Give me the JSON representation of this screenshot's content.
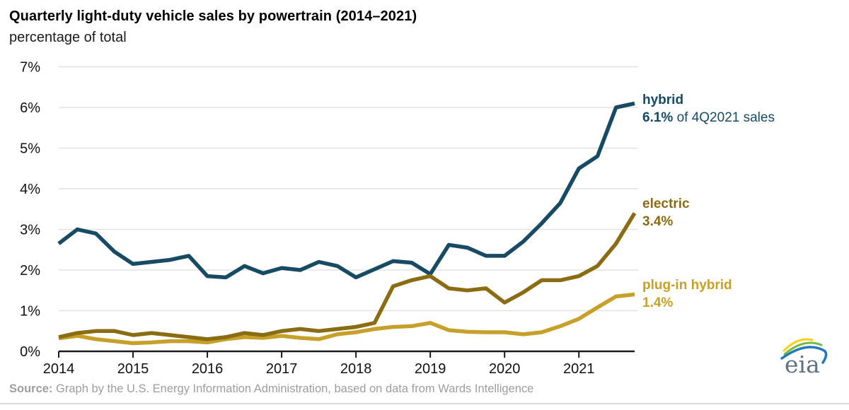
{
  "header": {
    "title": "Quarterly light-duty vehicle sales by powertrain (2014–2021)",
    "subtitle": "percentage of total"
  },
  "chart_data": {
    "type": "line",
    "title": "Quarterly light-duty vehicle sales by powertrain (2014–2021)",
    "subtitle": "percentage of total",
    "x_unit": "quarter",
    "x_range": [
      "2014 Q1",
      "2021 Q4"
    ],
    "x_tick_labels": [
      "2014",
      "2015",
      "2016",
      "2017",
      "2018",
      "2019",
      "2020",
      "2021"
    ],
    "y_tick_labels": [
      "0%",
      "1%",
      "2%",
      "3%",
      "4%",
      "5%",
      "6%",
      "7%"
    ],
    "ylim": [
      0,
      7
    ],
    "grid": "horizontal",
    "grid_color": "#e3e3e3",
    "axis_color": "#1a1a1a",
    "legend_position": "right-annotations",
    "series": [
      {
        "label": "hybrid",
        "callout_value": "6.1%",
        "callout_suffix": " of 4Q2021 sales",
        "color": "#174a63",
        "values": [
          2.65,
          3.0,
          2.9,
          2.45,
          2.15,
          2.2,
          2.25,
          2.35,
          1.85,
          1.82,
          2.1,
          1.92,
          2.05,
          2.0,
          2.2,
          2.1,
          1.82,
          2.02,
          2.22,
          2.18,
          1.9,
          2.62,
          2.55,
          2.35,
          2.35,
          2.7,
          3.15,
          3.65,
          4.5,
          4.8,
          6.0,
          6.1
        ]
      },
      {
        "label": "electric",
        "callout_value": "3.4%",
        "callout_suffix": "",
        "color": "#8a6c13",
        "values": [
          0.35,
          0.45,
          0.5,
          0.5,
          0.4,
          0.45,
          0.4,
          0.35,
          0.3,
          0.35,
          0.45,
          0.4,
          0.5,
          0.55,
          0.5,
          0.55,
          0.6,
          0.7,
          1.6,
          1.75,
          1.85,
          1.55,
          1.5,
          1.55,
          1.2,
          1.45,
          1.75,
          1.75,
          1.85,
          2.1,
          2.65,
          3.4
        ]
      },
      {
        "label": "plug-in hybrid",
        "callout_value": "1.4%",
        "callout_suffix": "",
        "color": "#c7a02a",
        "values": [
          0.32,
          0.38,
          0.3,
          0.25,
          0.2,
          0.22,
          0.25,
          0.25,
          0.22,
          0.3,
          0.35,
          0.33,
          0.38,
          0.33,
          0.3,
          0.42,
          0.47,
          0.55,
          0.6,
          0.62,
          0.7,
          0.52,
          0.48,
          0.47,
          0.47,
          0.42,
          0.47,
          0.62,
          0.8,
          1.08,
          1.35,
          1.4
        ]
      }
    ]
  },
  "footer": {
    "source_label": "Source:",
    "source_text": "Graph by the U.S. Energy Information Administration, based on data from Wards Intelligence"
  },
  "logo": {
    "text": "eia"
  }
}
